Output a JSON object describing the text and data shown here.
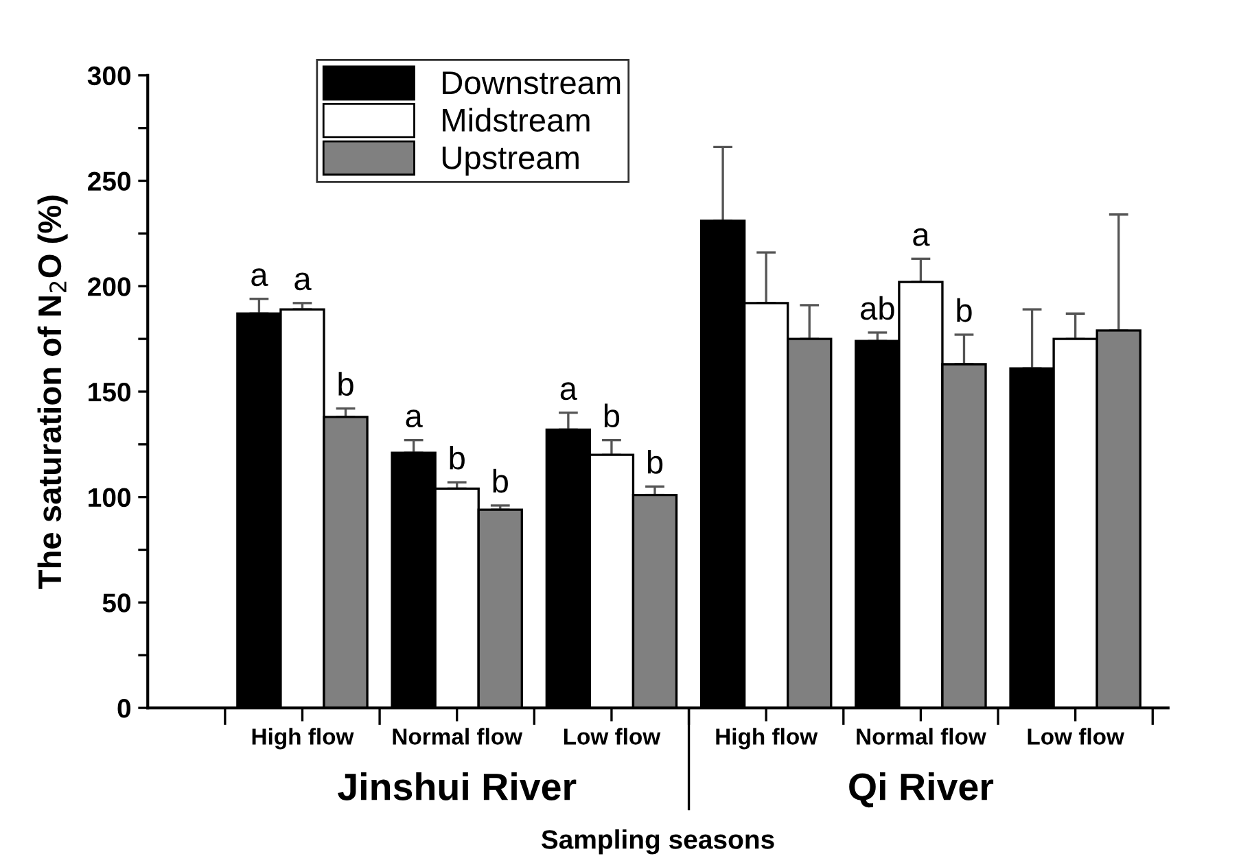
{
  "chart_data": {
    "type": "bar",
    "xlabel": "Sampling seasons",
    "ylabel": "The saturation of N$_{2}$O (%)",
    "categories": [
      "High flow",
      "Normal flow",
      "Low flow",
      "High flow",
      "Normal flow",
      "Low flow"
    ],
    "series": [
      {
        "name": "Downstream",
        "color": "#000000",
        "values": [
          187,
          121,
          132,
          231,
          174,
          161
        ],
        "errors": [
          [
            187,
            194
          ],
          [
            121,
            127
          ],
          [
            132,
            140
          ],
          [
            231,
            266
          ],
          [
            174,
            178
          ],
          [
            161,
            189
          ]
        ],
        "value_labels": [
          "a",
          "a",
          "a",
          null,
          "ab",
          null
        ]
      },
      {
        "name": "Midstream",
        "color": "#ffffff",
        "values": [
          189,
          104,
          120,
          192,
          202,
          175
        ],
        "errors": [
          [
            189,
            192
          ],
          [
            104,
            107
          ],
          [
            120,
            127
          ],
          [
            192,
            216
          ],
          [
            202,
            213
          ],
          [
            175,
            187
          ]
        ],
        "value_labels": [
          "a",
          "b",
          "b",
          null,
          "a",
          null
        ]
      },
      {
        "name": "Upstream",
        "color": "#808080",
        "values": [
          138,
          94,
          101,
          175,
          163,
          179
        ],
        "errors": [
          [
            138,
            142
          ],
          [
            94,
            96
          ],
          [
            101,
            105
          ],
          [
            175,
            191
          ],
          [
            163,
            177
          ],
          [
            179,
            234
          ]
        ],
        "value_labels": [
          "b",
          "b",
          "b",
          null,
          "b",
          null
        ]
      }
    ],
    "ylim": [
      0,
      300
    ],
    "yticks": [
      0,
      {
        "value": 25,
        "label": null
      },
      50,
      {
        "value": 75,
        "label": null
      },
      100,
      {
        "value": 125,
        "label": null
      },
      150,
      {
        "value": 175,
        "label": null
      },
      200,
      {
        "value": 225,
        "label": null
      },
      250,
      {
        "value": 275,
        "label": null
      },
      300
    ],
    "annotations": [
      "Jinshui River",
      "Qi River"
    ],
    "legend": "top left",
    "grid": false
  }
}
